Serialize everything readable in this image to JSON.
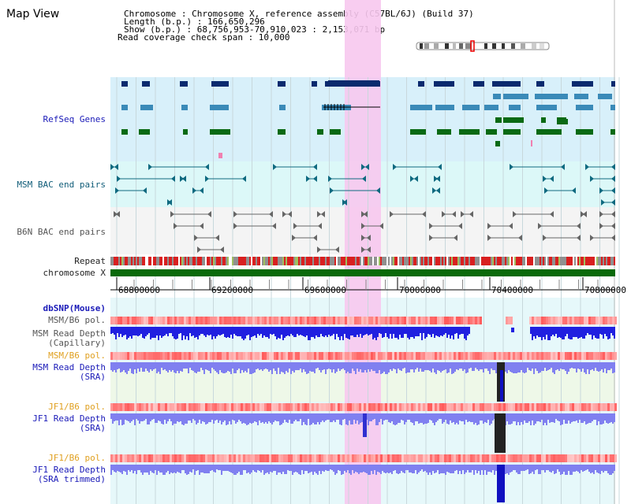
{
  "page": {
    "title": "Map View"
  },
  "header": {
    "lines": [
      "Chromosome    : Chromosome X, reference assembly (C57BL/6J) (Build 37)",
      "Length (b.p.) : 166,650,296",
      " Show (b.p.) : 68,756,953-70,910,023 : 2,153,071 bp",
      "Read coverage check span : 10,000"
    ]
  },
  "tracks": {
    "refseq": "RefSeq Genes",
    "msm_bac": "MSM BAC end pairs",
    "b6n_bac": "B6N BAC end pairs",
    "repeat": "Repeat",
    "chromosome": "chromosome X",
    "dbsnp": "dbSNP(Mouse)",
    "msm_b6_pol_a": "MSM/B6 pol.",
    "msm_depth_cap_1": "MSM Read Depth",
    "msm_depth_cap_2": "(Capillary)",
    "msm_b6_pol_b": "MSM/B6 pol.",
    "msm_depth_sra_1": "MSM Read Depth",
    "msm_depth_sra_2": "(SRA)",
    "jf1_b6_pol_a": "JF1/B6 pol.",
    "jf1_depth_sra_1": "JF1 Read Depth",
    "jf1_depth_sra_2": "(SRA)",
    "jf1_b6_pol_b": "JF1/B6 pol.",
    "jf1_depth_trim_1": "JF1 Read Depth",
    "jf1_depth_trim_2": "(SRA trimmed)"
  },
  "axis": {
    "ticks": [
      "68800000",
      "69200000",
      "69600000",
      "70000000",
      "70400000",
      "70800000"
    ]
  },
  "colors": {
    "highlight": "#f7c8ee",
    "refseq_bg": "#d8f0fa",
    "refseq_dark": "#0a2a6e",
    "refseq_mid": "#3a8ab8",
    "refseq_green": "#0a6a14",
    "msm_bac_bg": "#dcf8f8",
    "bac_line": "#0f6a80",
    "b6n_bg": "#f4f4f4",
    "chromosome": "#0a6a0a",
    "pol_red": "#e83a3a",
    "depth_blue": "#2020e0",
    "depth_light": "#8080f0"
  }
}
